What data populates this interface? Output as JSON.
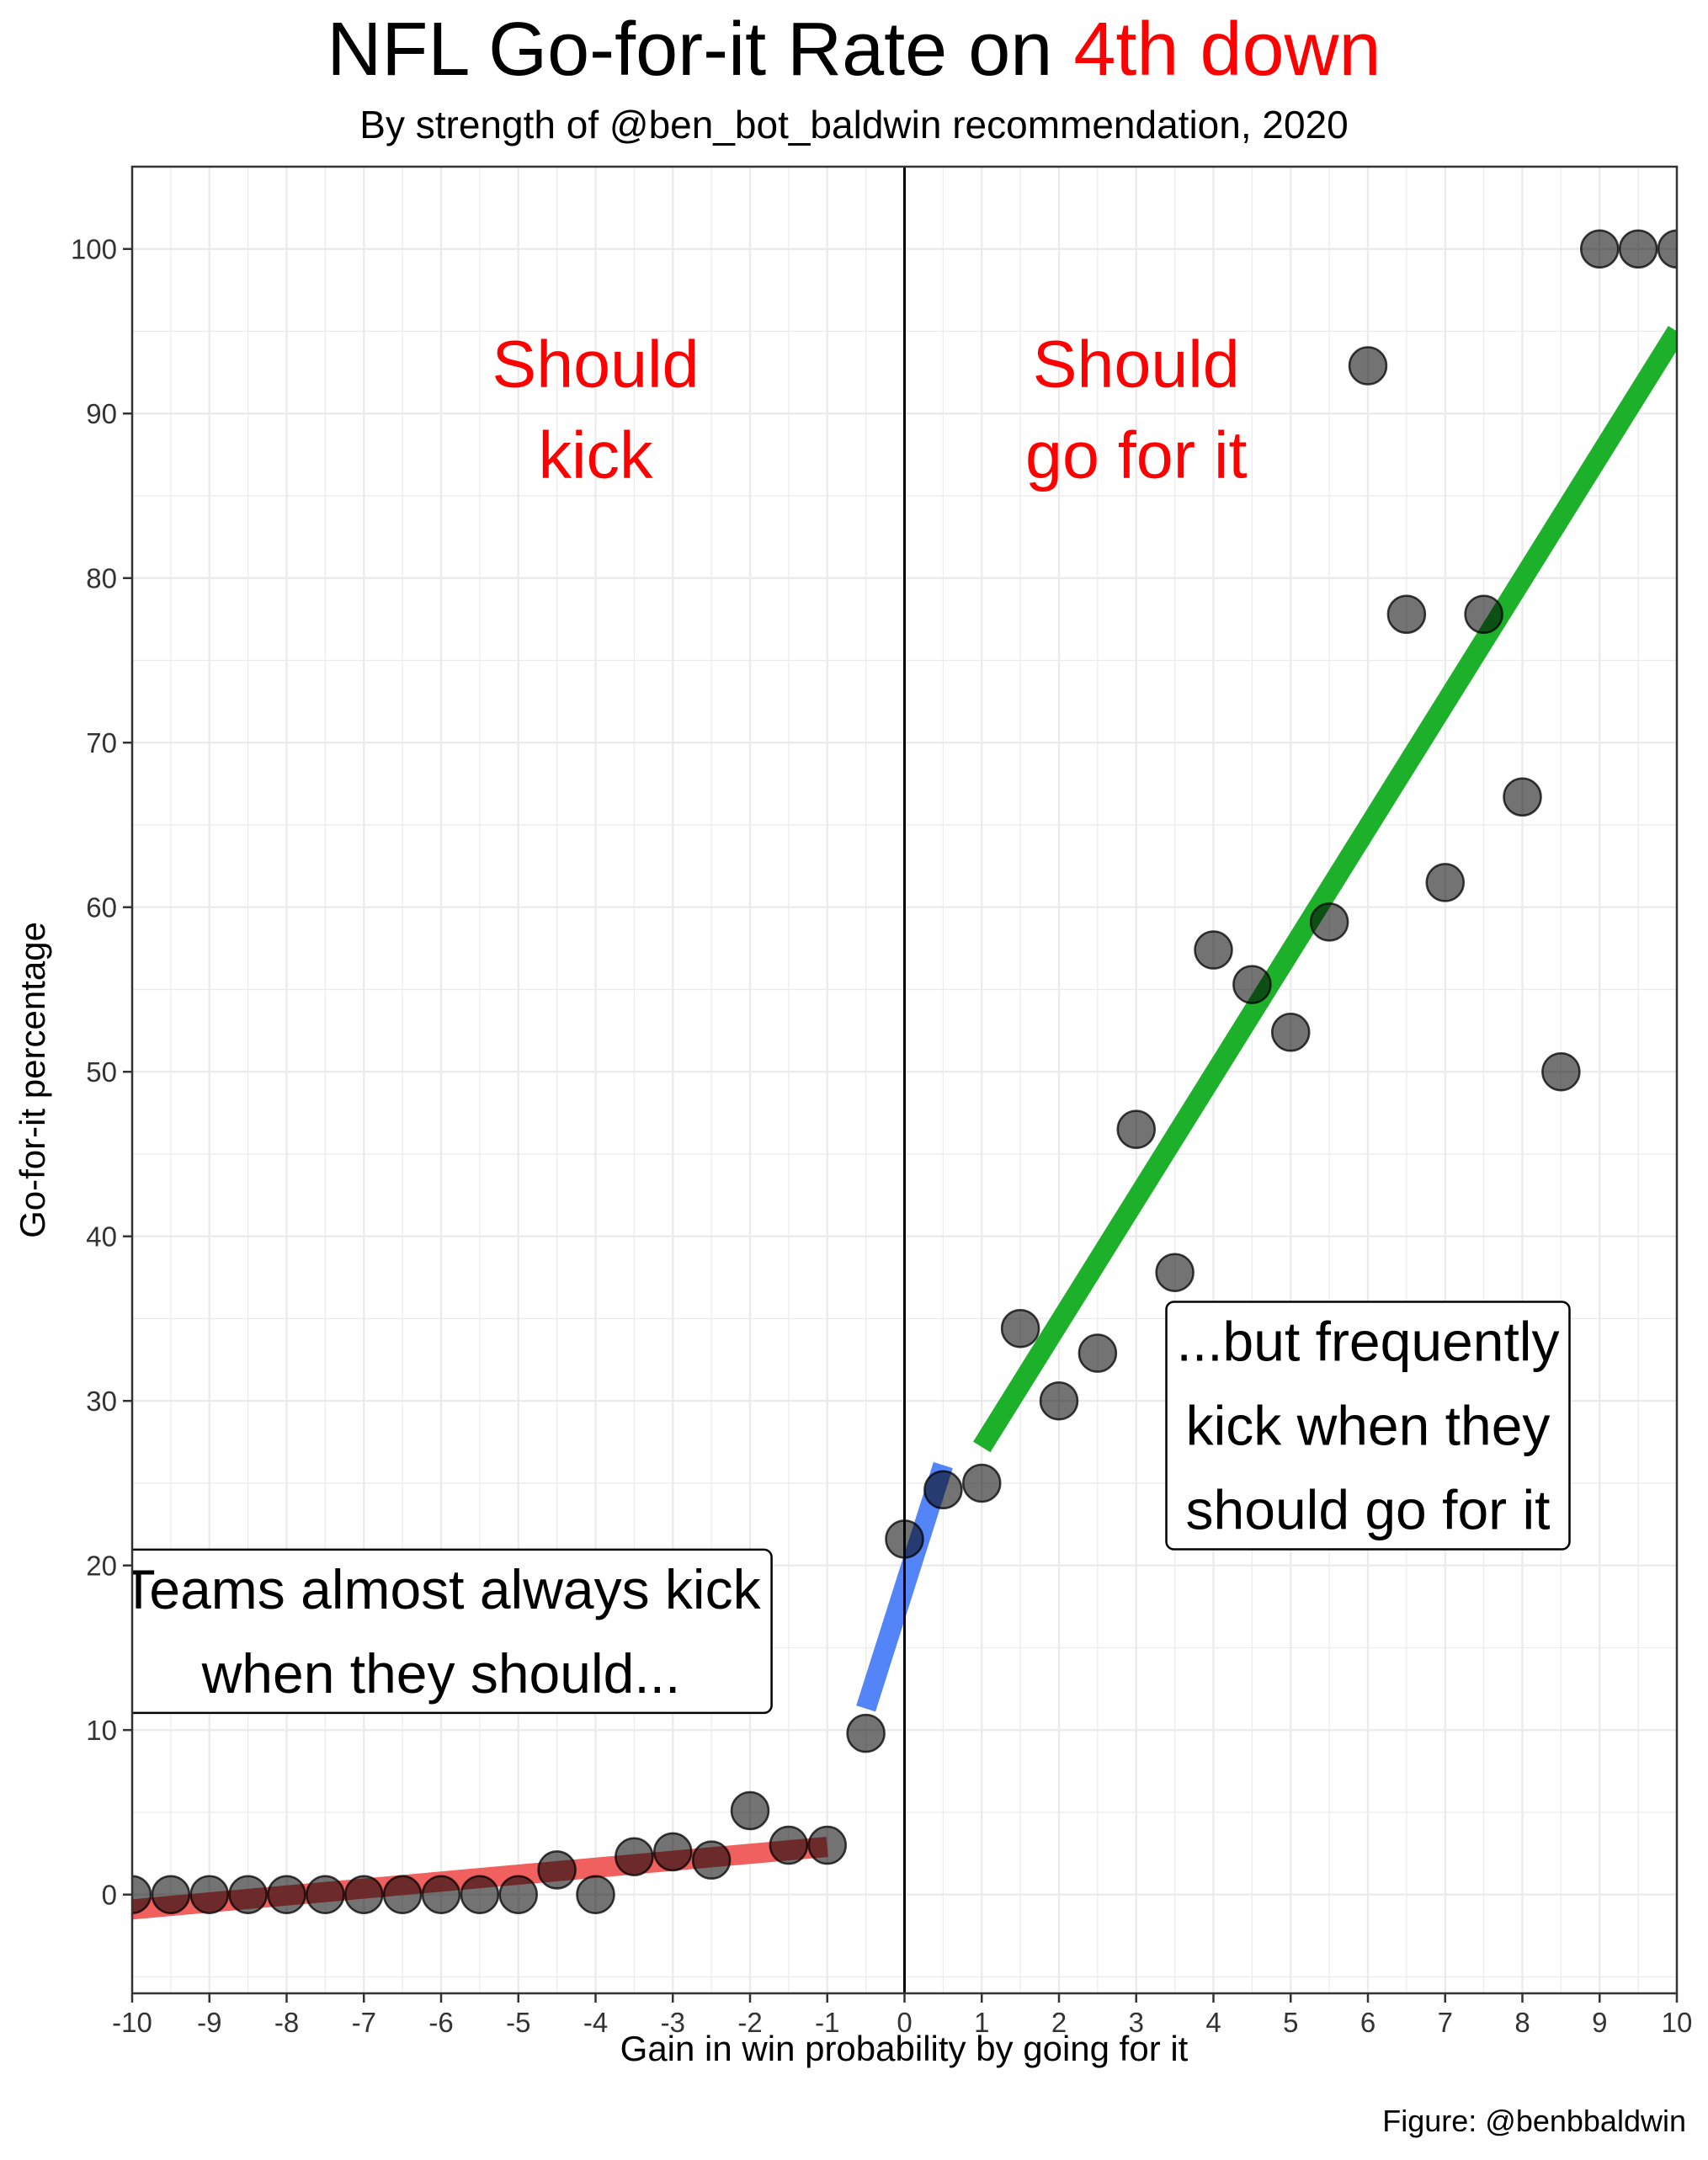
{
  "title": {
    "prefix": "NFL Go-for-it Rate on ",
    "highlight": "4th down",
    "highlight_color": "#ff0000"
  },
  "subtitle": "By strength of @ben_bot_baldwin recommendation, 2020",
  "caption": "Figure: @benbbaldwin",
  "chart_data": {
    "type": "scatter",
    "xlabel": "Gain in win probability by going for it",
    "ylabel": "Go-for-it percentage",
    "xlim": [
      -10,
      10
    ],
    "ylim": [
      -6,
      105
    ],
    "x_ticks": [
      -10,
      -9,
      -8,
      -7,
      -6,
      -5,
      -4,
      -3,
      -2,
      -1,
      0,
      1,
      2,
      3,
      4,
      5,
      6,
      7,
      8,
      9,
      10
    ],
    "y_ticks": [
      0,
      10,
      20,
      30,
      40,
      50,
      60,
      70,
      80,
      90,
      100
    ],
    "grid": true,
    "vline_x": 0,
    "points": [
      {
        "x": -10,
        "y": 0
      },
      {
        "x": -9.5,
        "y": 0
      },
      {
        "x": -9,
        "y": 0
      },
      {
        "x": -8.5,
        "y": 0
      },
      {
        "x": -8,
        "y": 0
      },
      {
        "x": -7.5,
        "y": 0
      },
      {
        "x": -7,
        "y": 0
      },
      {
        "x": -6.5,
        "y": 0
      },
      {
        "x": -6,
        "y": 0
      },
      {
        "x": -5.5,
        "y": 0
      },
      {
        "x": -5,
        "y": 0
      },
      {
        "x": -4.5,
        "y": 1.5
      },
      {
        "x": -4,
        "y": 0
      },
      {
        "x": -3.5,
        "y": 2.3
      },
      {
        "x": -3,
        "y": 2.6
      },
      {
        "x": -2.5,
        "y": 2.1
      },
      {
        "x": -2,
        "y": 5.1
      },
      {
        "x": -1.5,
        "y": 3
      },
      {
        "x": -1,
        "y": 3
      },
      {
        "x": -0.5,
        "y": 9.8
      },
      {
        "x": 0,
        "y": 21.6
      },
      {
        "x": 0.5,
        "y": 24.6
      },
      {
        "x": 1,
        "y": 25
      },
      {
        "x": 1.5,
        "y": 34.4
      },
      {
        "x": 2,
        "y": 30
      },
      {
        "x": 2.5,
        "y": 32.9
      },
      {
        "x": 3,
        "y": 46.5
      },
      {
        "x": 3.5,
        "y": 37.8
      },
      {
        "x": 4,
        "y": 57.4
      },
      {
        "x": 4.5,
        "y": 55.3
      },
      {
        "x": 5,
        "y": 52.4
      },
      {
        "x": 5.5,
        "y": 59.1
      },
      {
        "x": 6,
        "y": 92.9
      },
      {
        "x": 6.5,
        "y": 77.8
      },
      {
        "x": 7,
        "y": 61.5
      },
      {
        "x": 7.5,
        "y": 77.8
      },
      {
        "x": 8,
        "y": 66.7
      },
      {
        "x": 8.5,
        "y": 50
      },
      {
        "x": 9,
        "y": 100
      },
      {
        "x": 9.5,
        "y": 100
      },
      {
        "x": 10,
        "y": 100
      }
    ],
    "fit_lines": [
      {
        "x": [
          -10,
          -1
        ],
        "y": [
          -0.9,
          2.9
        ],
        "color": "#f0605e"
      },
      {
        "x": [
          -0.5,
          0.5
        ],
        "y": [
          11.3,
          26.1
        ],
        "color": "#5485f8"
      },
      {
        "x": [
          1,
          10
        ],
        "y": [
          27.2,
          95
        ],
        "color": "#1db12b"
      }
    ],
    "region_labels": [
      {
        "lines": [
          "Should",
          "kick"
        ],
        "x": -4,
        "y": 93,
        "color": "#ff0000"
      },
      {
        "lines": [
          "Should",
          "go for it"
        ],
        "x": 3,
        "y": 93,
        "color": "#ff0000"
      }
    ],
    "annotations": [
      {
        "lines": [
          "Teams almost always kick",
          "when they should..."
        ],
        "x": -6,
        "y": 16
      },
      {
        "lines": [
          "...but frequently",
          "kick when they",
          "should go for it"
        ],
        "x": 6,
        "y": 28.5
      }
    ]
  }
}
